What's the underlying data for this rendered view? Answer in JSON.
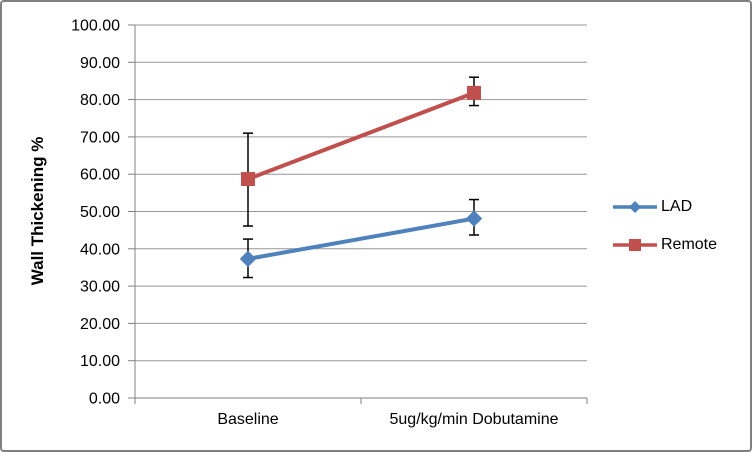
{
  "chart_data": {
    "type": "line",
    "title": "",
    "xlabel": "",
    "ylabel": "Wall Thickening %",
    "categories": [
      "Baseline",
      "5ug/kg/min Dobutamine"
    ],
    "ylim": [
      0,
      100
    ],
    "yticks": [
      0,
      10,
      20,
      30,
      40,
      50,
      60,
      70,
      80,
      90,
      100
    ],
    "ytick_labels": [
      "0.00",
      "10.00",
      "20.00",
      "30.00",
      "40.00",
      "50.00",
      "60.00",
      "70.00",
      "80.00",
      "90.00",
      "100.00"
    ],
    "grid": true,
    "legend_position": "right",
    "series": [
      {
        "name": "LAD",
        "color": "#4F81BD",
        "marker": "diamond",
        "values": [
          37.3,
          48.1
        ],
        "error_low": [
          32.3,
          43.7
        ],
        "error_high": [
          42.6,
          53.2
        ]
      },
      {
        "name": "Remote",
        "color": "#C0504D",
        "marker": "square",
        "values": [
          58.7,
          81.8
        ],
        "error_low": [
          46.1,
          78.4
        ],
        "error_high": [
          71.0,
          86.0
        ]
      }
    ],
    "error_bar_color": "#000000"
  },
  "colors": {
    "background": "#FFFFFF",
    "border": "#7F7F7F",
    "axis": "#808080",
    "gridline": "#969696",
    "text": "#000000"
  }
}
